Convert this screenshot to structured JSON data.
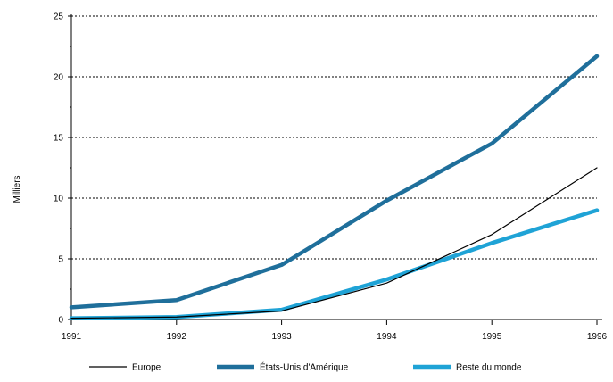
{
  "chart_data": {
    "type": "line",
    "title": "",
    "xlabel": "",
    "ylabel": "Milliers",
    "x": [
      "1991",
      "1992",
      "1993",
      "1994",
      "1995",
      "1996"
    ],
    "ylim": [
      0,
      25
    ],
    "yticks": [
      "0",
      "5",
      "10",
      "15",
      "20",
      "25"
    ],
    "grid": "horizontal dotted",
    "legend_position": "bottom",
    "series": [
      {
        "name": "Europe",
        "color": "#000000",
        "style": "thin",
        "values": [
          0.1,
          0.2,
          0.7,
          3.0,
          7.0,
          12.5
        ]
      },
      {
        "name": "États-Unis d'Amérique",
        "color": "#1f6f9b",
        "style": "thick",
        "values": [
          1.0,
          1.6,
          4.5,
          9.8,
          14.5,
          21.7
        ]
      },
      {
        "name": "Reste du monde",
        "color": "#1fa3d6",
        "style": "thick",
        "values": [
          0.1,
          0.2,
          0.8,
          3.3,
          6.3,
          9.0
        ]
      }
    ]
  }
}
